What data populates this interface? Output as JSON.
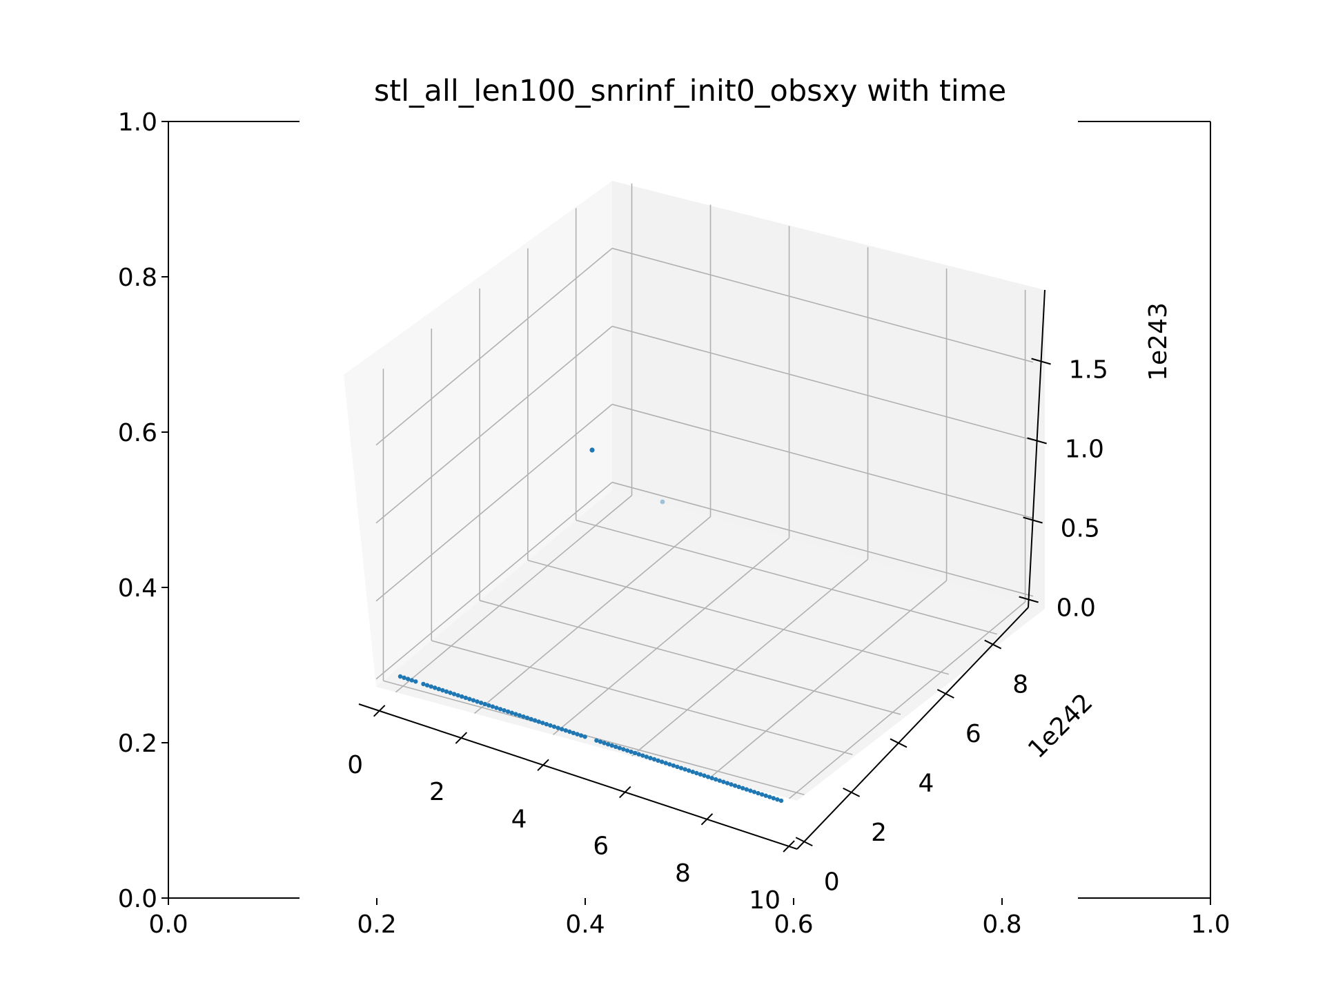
{
  "chart_data": {
    "type": "scatter",
    "projection": "3d",
    "title": "stl_all_len100_snrinf_init0_obsxy with time",
    "background_axes": {
      "x_ticks": [
        "0.0",
        "0.2",
        "0.4",
        "0.6",
        "0.8",
        "1.0"
      ],
      "y_ticks": [
        "0.0",
        "0.2",
        "0.4",
        "0.6",
        "0.8",
        "1.0"
      ],
      "xlim": [
        0,
        1
      ],
      "ylim": [
        0,
        1
      ]
    },
    "x_axis": {
      "ticks": [
        "0",
        "2",
        "4",
        "6",
        "8",
        "10"
      ],
      "xlim": [
        -0.5,
        10.2
      ]
    },
    "y_axis": {
      "ticks": [
        "0",
        "2",
        "4",
        "6",
        "8"
      ],
      "offset_label": "1e242",
      "ylim": [
        -0.3,
        9.5
      ]
    },
    "z_axis": {
      "ticks": [
        "0.0",
        "0.5",
        "1.0",
        "1.5"
      ],
      "offset_label": "1e243",
      "zlim": [
        -0.05,
        1.95
      ]
    },
    "grid": true,
    "colors": {
      "series": "#1f77b4",
      "pane_back": "#f2f2f2",
      "pane_side": "#f7f7f7",
      "grid": "#b0b0b0"
    },
    "series": [
      {
        "label_points": "main line: x from 0 to 10, y ≈ 0, z ≈ 0",
        "x_start": 0,
        "x_end": 10,
        "count": 100,
        "gaps_after_x": [
          0.5,
          5.0
        ],
        "y": 0,
        "z": 0
      },
      {
        "outliers": [
          {
            "x": 0.0,
            "y": 8.3,
            "z": 1.02
          },
          {
            "x": 0.0,
            "y": 7.0,
            "z": 0.0,
            "alpha": 0.4
          }
        ]
      }
    ]
  }
}
